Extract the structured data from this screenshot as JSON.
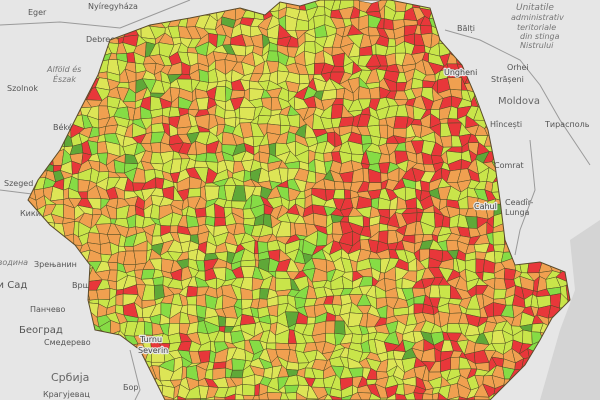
{
  "map": {
    "labels": {
      "eger": "Eger",
      "nyiregyhaza": "Nyíregyháza",
      "debrecen": "Debrecen",
      "alfold1": "Alföld és",
      "alfold2": "Észak",
      "szolnok": "Szolnok",
      "bekescsaba": "Békéscsaba",
      "szeged": "Szeged",
      "kikinda": "Кикинда",
      "vojvodina": "Војводина",
      "zrenjanin": "Зрењанин",
      "novisad": "Нови Сад",
      "vrsac": "Вршац",
      "pancevo": "Панчево",
      "beograd": "Београд",
      "smederevo": "Смедерево",
      "srbija": "Србија",
      "bor": "Бор",
      "kragujevac": "Крагујевац",
      "turnu1": "Turnu",
      "turnu2": "Severin",
      "balti": "Bălți",
      "transn1": "Unitatile",
      "transn2": "administrativ",
      "transn3": "teritoriale",
      "transn4": "din stinga",
      "transn5": "Nistrului",
      "orhei": "Orhei",
      "straseni": "Strășeni",
      "ungheni": "Ungheni",
      "moldova": "Moldova",
      "hincesti": "Hîncești",
      "tiraspol": "Тирасполь",
      "comrat": "Comrat",
      "cahul": "Cahul",
      "ceadir1": "Ceadîr-",
      "ceadir2": "Lunga"
    },
    "colors": {
      "background": "#e6e6e6",
      "border": "#9a9a9a",
      "cell_stroke": "#4e4a22",
      "scale": [
        "#e8373a",
        "#f0a050",
        "#dde556",
        "#c9e54a",
        "#86dc45",
        "#5fa838"
      ]
    }
  }
}
